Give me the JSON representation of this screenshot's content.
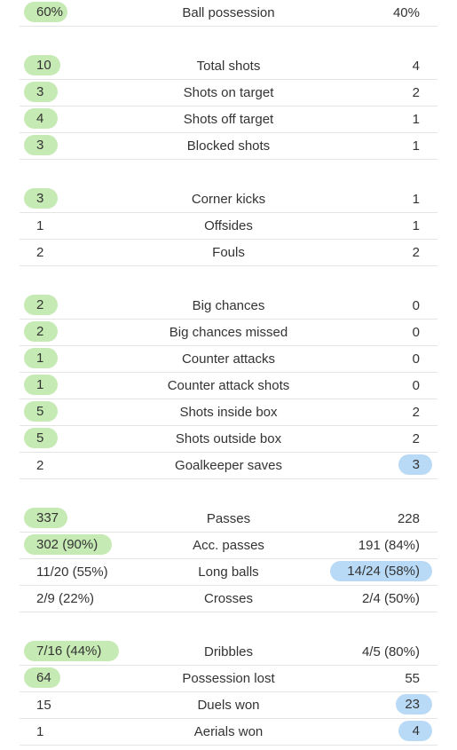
{
  "groups": [
    [
      {
        "name": "Ball possession",
        "home": "60%",
        "away": "40%",
        "winner": "home"
      }
    ],
    [
      {
        "name": "Total shots",
        "home": "10",
        "away": "4",
        "winner": "home"
      },
      {
        "name": "Shots on target",
        "home": "3",
        "away": "2",
        "winner": "home"
      },
      {
        "name": "Shots off target",
        "home": "4",
        "away": "1",
        "winner": "home"
      },
      {
        "name": "Blocked shots",
        "home": "3",
        "away": "1",
        "winner": "home"
      }
    ],
    [
      {
        "name": "Corner kicks",
        "home": "3",
        "away": "1",
        "winner": "home"
      },
      {
        "name": "Offsides",
        "home": "1",
        "away": "1",
        "winner": "none"
      },
      {
        "name": "Fouls",
        "home": "2",
        "away": "2",
        "winner": "none"
      }
    ],
    [
      {
        "name": "Big chances",
        "home": "2",
        "away": "0",
        "winner": "home"
      },
      {
        "name": "Big chances missed",
        "home": "2",
        "away": "0",
        "winner": "home"
      },
      {
        "name": "Counter attacks",
        "home": "1",
        "away": "0",
        "winner": "home"
      },
      {
        "name": "Counter attack shots",
        "home": "1",
        "away": "0",
        "winner": "home"
      },
      {
        "name": "Shots inside box",
        "home": "5",
        "away": "2",
        "winner": "home"
      },
      {
        "name": "Shots outside box",
        "home": "5",
        "away": "2",
        "winner": "home"
      },
      {
        "name": "Goalkeeper saves",
        "home": "2",
        "away": "3",
        "winner": "away"
      }
    ],
    [
      {
        "name": "Passes",
        "home": "337",
        "away": "228",
        "winner": "home"
      },
      {
        "name": "Acc. passes",
        "home": "302 (90%)",
        "away": "191 (84%)",
        "winner": "home"
      },
      {
        "name": "Long balls",
        "home": "11/20 (55%)",
        "away": "14/24 (58%)",
        "winner": "away"
      },
      {
        "name": "Crosses",
        "home": "2/9 (22%)",
        "away": "2/4 (50%)",
        "winner": "none"
      }
    ],
    [
      {
        "name": "Dribbles",
        "home": "7/16 (44%)",
        "away": "4/5 (80%)",
        "winner": "home"
      },
      {
        "name": "Possession lost",
        "home": "64",
        "away": "55",
        "winner": "home"
      },
      {
        "name": "Duels won",
        "home": "15",
        "away": "23",
        "winner": "away"
      },
      {
        "name": "Aerials won",
        "home": "1",
        "away": "4",
        "winner": "away"
      }
    ]
  ],
  "colors": {
    "home_highlight": "#c6eab3",
    "away_highlight": "#b9daf7",
    "divider": "#e4e4e4",
    "text": "#333333"
  }
}
